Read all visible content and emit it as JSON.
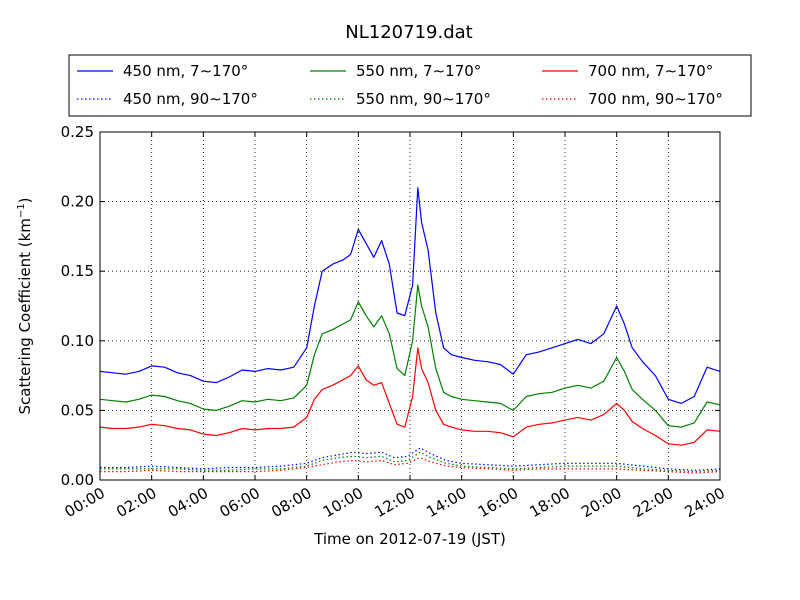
{
  "chart_data": {
    "type": "line",
    "title": "NL120719.dat",
    "xlabel": "Time on 2012-07-19 (JST)",
    "ylabel": "Scattering Coefficient (km",
    "ylabel_sup": "−1",
    "ylabel_end": ")",
    "xlim": [
      0,
      24
    ],
    "ylim": [
      0,
      0.25
    ],
    "x_ticks": [
      "00:00",
      "02:00",
      "04:00",
      "06:00",
      "08:00",
      "10:00",
      "12:00",
      "14:00",
      "16:00",
      "18:00",
      "20:00",
      "22:00",
      "24:00"
    ],
    "y_ticks": [
      "0.00",
      "0.05",
      "0.10",
      "0.15",
      "0.20",
      "0.25"
    ],
    "grid": true,
    "legend_position": "top (above plot)",
    "series": [
      {
        "name": "450 nm, 7∼170°",
        "color": "#0000ff",
        "style": "solid",
        "x": [
          0,
          0.5,
          1,
          1.5,
          2,
          2.5,
          3,
          3.5,
          4,
          4.5,
          5,
          5.5,
          6,
          6.5,
          7,
          7.5,
          8,
          8.3,
          8.6,
          9,
          9.4,
          9.7,
          10,
          10.3,
          10.6,
          10.9,
          11.2,
          11.5,
          11.8,
          12.1,
          12.3,
          12.45,
          12.7,
          13,
          13.3,
          13.6,
          14,
          14.5,
          15,
          15.5,
          16,
          16.5,
          17,
          17.5,
          18,
          18.5,
          19,
          19.5,
          20,
          20.3,
          20.6,
          21,
          21.5,
          22,
          22.5,
          23,
          23.5,
          24
        ],
        "y": [
          0.078,
          0.077,
          0.076,
          0.078,
          0.082,
          0.081,
          0.077,
          0.075,
          0.071,
          0.07,
          0.074,
          0.079,
          0.078,
          0.08,
          0.079,
          0.081,
          0.095,
          0.125,
          0.15,
          0.155,
          0.158,
          0.162,
          0.18,
          0.17,
          0.16,
          0.172,
          0.155,
          0.12,
          0.118,
          0.14,
          0.21,
          0.185,
          0.165,
          0.12,
          0.095,
          0.09,
          0.088,
          0.086,
          0.085,
          0.083,
          0.076,
          0.09,
          0.092,
          0.095,
          0.098,
          0.101,
          0.098,
          0.105,
          0.125,
          0.112,
          0.095,
          0.085,
          0.075,
          0.058,
          0.055,
          0.06,
          0.081,
          0.078
        ]
      },
      {
        "name": "550 nm, 7∼170°",
        "color": "#008000",
        "style": "solid",
        "x": [
          0,
          0.5,
          1,
          1.5,
          2,
          2.5,
          3,
          3.5,
          4,
          4.5,
          5,
          5.5,
          6,
          6.5,
          7,
          7.5,
          8,
          8.3,
          8.6,
          9,
          9.4,
          9.7,
          10,
          10.3,
          10.6,
          10.9,
          11.2,
          11.5,
          11.8,
          12.1,
          12.3,
          12.45,
          12.7,
          13,
          13.3,
          13.6,
          14,
          14.5,
          15,
          15.5,
          16,
          16.5,
          17,
          17.5,
          18,
          18.5,
          19,
          19.5,
          20,
          20.3,
          20.6,
          21,
          21.5,
          22,
          22.5,
          23,
          23.5,
          24
        ],
        "y": [
          0.058,
          0.057,
          0.056,
          0.058,
          0.061,
          0.06,
          0.057,
          0.055,
          0.051,
          0.05,
          0.053,
          0.057,
          0.056,
          0.058,
          0.057,
          0.059,
          0.068,
          0.09,
          0.105,
          0.108,
          0.112,
          0.115,
          0.128,
          0.118,
          0.11,
          0.118,
          0.105,
          0.08,
          0.075,
          0.1,
          0.14,
          0.125,
          0.11,
          0.08,
          0.063,
          0.06,
          0.058,
          0.057,
          0.056,
          0.055,
          0.05,
          0.06,
          0.062,
          0.063,
          0.066,
          0.068,
          0.066,
          0.071,
          0.088,
          0.078,
          0.065,
          0.058,
          0.05,
          0.039,
          0.038,
          0.041,
          0.056,
          0.054
        ]
      },
      {
        "name": "700 nm, 7∼170°",
        "color": "#ff0000",
        "style": "solid",
        "x": [
          0,
          0.5,
          1,
          1.5,
          2,
          2.5,
          3,
          3.5,
          4,
          4.5,
          5,
          5.5,
          6,
          6.5,
          7,
          7.5,
          8,
          8.3,
          8.6,
          9,
          9.4,
          9.7,
          10,
          10.3,
          10.6,
          10.9,
          11.2,
          11.5,
          11.8,
          12.1,
          12.3,
          12.45,
          12.7,
          13,
          13.3,
          13.6,
          14,
          14.5,
          15,
          15.5,
          16,
          16.5,
          17,
          17.5,
          18,
          18.5,
          19,
          19.5,
          20,
          20.3,
          20.6,
          21,
          21.5,
          22,
          22.5,
          23,
          23.5,
          24
        ],
        "y": [
          0.038,
          0.037,
          0.037,
          0.038,
          0.04,
          0.039,
          0.037,
          0.036,
          0.033,
          0.032,
          0.034,
          0.037,
          0.036,
          0.037,
          0.037,
          0.038,
          0.045,
          0.058,
          0.065,
          0.068,
          0.072,
          0.075,
          0.082,
          0.072,
          0.068,
          0.07,
          0.055,
          0.04,
          0.038,
          0.06,
          0.095,
          0.08,
          0.07,
          0.05,
          0.04,
          0.038,
          0.036,
          0.035,
          0.035,
          0.034,
          0.031,
          0.038,
          0.04,
          0.041,
          0.043,
          0.045,
          0.043,
          0.047,
          0.055,
          0.05,
          0.042,
          0.037,
          0.032,
          0.026,
          0.025,
          0.027,
          0.036,
          0.035
        ]
      },
      {
        "name": "450 nm, 90∼170°",
        "color": "#0000ff",
        "style": "dotted",
        "x": [
          0,
          1,
          2,
          3,
          4,
          5,
          6,
          7,
          8,
          8.6,
          9.2,
          9.8,
          10.3,
          10.9,
          11.4,
          11.9,
          12.4,
          12.8,
          13.4,
          14,
          15,
          16,
          17,
          18,
          19,
          20,
          21,
          22,
          23,
          24
        ],
        "y": [
          0.009,
          0.009,
          0.01,
          0.009,
          0.008,
          0.009,
          0.009,
          0.01,
          0.012,
          0.016,
          0.018,
          0.02,
          0.019,
          0.02,
          0.016,
          0.017,
          0.023,
          0.019,
          0.014,
          0.012,
          0.011,
          0.01,
          0.011,
          0.012,
          0.012,
          0.012,
          0.01,
          0.008,
          0.007,
          0.008
        ]
      },
      {
        "name": "550 nm, 90∼170°",
        "color": "#008000",
        "style": "dotted",
        "x": [
          0,
          1,
          2,
          3,
          4,
          5,
          6,
          7,
          8,
          8.6,
          9.2,
          9.8,
          10.3,
          10.9,
          11.4,
          11.9,
          12.4,
          12.8,
          13.4,
          14,
          15,
          16,
          17,
          18,
          19,
          20,
          21,
          22,
          23,
          24
        ],
        "y": [
          0.008,
          0.008,
          0.008,
          0.008,
          0.007,
          0.007,
          0.008,
          0.008,
          0.01,
          0.014,
          0.016,
          0.017,
          0.016,
          0.017,
          0.013,
          0.014,
          0.02,
          0.016,
          0.012,
          0.01,
          0.009,
          0.008,
          0.009,
          0.01,
          0.01,
          0.01,
          0.008,
          0.007,
          0.006,
          0.007
        ]
      },
      {
        "name": "700 nm, 90∼170°",
        "color": "#ff0000",
        "style": "dotted",
        "x": [
          0,
          1,
          2,
          3,
          4,
          5,
          6,
          7,
          8,
          8.6,
          9.2,
          9.8,
          10.3,
          10.9,
          11.4,
          11.9,
          12.4,
          12.8,
          13.4,
          14,
          15,
          16,
          17,
          18,
          19,
          20,
          21,
          22,
          23,
          24
        ],
        "y": [
          0.006,
          0.006,
          0.007,
          0.006,
          0.006,
          0.006,
          0.006,
          0.007,
          0.009,
          0.011,
          0.013,
          0.014,
          0.013,
          0.014,
          0.011,
          0.012,
          0.016,
          0.013,
          0.01,
          0.009,
          0.008,
          0.007,
          0.008,
          0.008,
          0.008,
          0.008,
          0.007,
          0.006,
          0.005,
          0.006
        ]
      }
    ]
  }
}
